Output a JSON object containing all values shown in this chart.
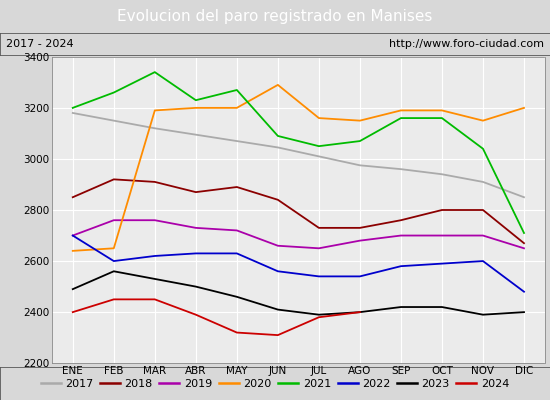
{
  "title": "Evolucion del paro registrado en Manises",
  "subtitle_left": "2017 - 2024",
  "subtitle_right": "http://www.foro-ciudad.com",
  "months": [
    "ENE",
    "FEB",
    "MAR",
    "ABR",
    "MAY",
    "JUN",
    "JUL",
    "AGO",
    "SEP",
    "OCT",
    "NOV",
    "DIC"
  ],
  "ylim": [
    2200,
    3400
  ],
  "yticks": [
    2200,
    2400,
    2600,
    2800,
    3000,
    3200,
    3400
  ],
  "series": {
    "2017": {
      "color": "#aaaaaa",
      "data": [
        3180,
        3150,
        3120,
        3095,
        3070,
        3045,
        3010,
        2975,
        2960,
        2940,
        2910,
        2850
      ]
    },
    "2018": {
      "color": "#8b0000",
      "data": [
        2850,
        2920,
        2910,
        2870,
        2890,
        2840,
        2730,
        2730,
        2760,
        2800,
        2800,
        2670
      ]
    },
    "2019": {
      "color": "#aa00aa",
      "data": [
        2700,
        2760,
        2760,
        2730,
        2720,
        2660,
        2650,
        2680,
        2700,
        2700,
        2700,
        2650
      ]
    },
    "2020": {
      "color": "#ff8c00",
      "data": [
        2640,
        2650,
        3190,
        3200,
        3200,
        3290,
        3160,
        3150,
        3190,
        3190,
        3150,
        3200
      ]
    },
    "2021": {
      "color": "#00bb00",
      "data": [
        3200,
        3260,
        3340,
        3230,
        3270,
        3090,
        3050,
        3070,
        3160,
        3160,
        3040,
        2710
      ]
    },
    "2022": {
      "color": "#0000cc",
      "data": [
        2700,
        2600,
        2620,
        2630,
        2630,
        2560,
        2540,
        2540,
        2580,
        2590,
        2600,
        2480
      ]
    },
    "2023": {
      "color": "#000000",
      "data": [
        2490,
        2560,
        2530,
        2500,
        2460,
        2410,
        2390,
        2400,
        2420,
        2420,
        2390,
        2400
      ]
    },
    "2024": {
      "color": "#cc0000",
      "data": [
        2400,
        2450,
        2450,
        2390,
        2320,
        2310,
        2380,
        2400,
        null,
        null,
        null,
        null
      ]
    }
  },
  "title_bg": "#4a7fc1",
  "title_color": "#ffffff",
  "subtitle_bg": "#d8d8d8",
  "plot_bg": "#ebebeb",
  "grid_color": "#ffffff",
  "outer_bg": "#d8d8d8",
  "title_fontsize": 11,
  "subtitle_fontsize": 8,
  "axis_fontsize": 7.5,
  "legend_fontsize": 8
}
